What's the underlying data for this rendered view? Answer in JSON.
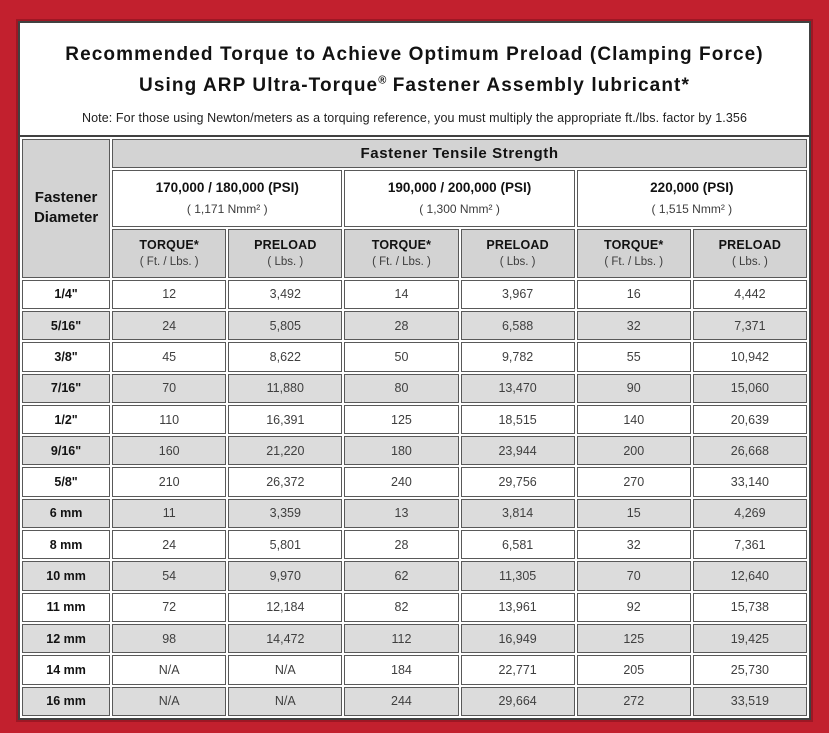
{
  "title": {
    "line1": "Recommended Torque to Achieve Optimum Preload (Clamping Force)",
    "line2_pre": "Using ARP Ultra-Torque",
    "line2_reg": "®",
    "line2_post": " Fastener Assembly lubricant*",
    "note": "Note: For those using Newton/meters as a torquing reference, you must multiply the appropriate ft./lbs. factor by 1.356"
  },
  "table": {
    "tensile_header": "Fastener Tensile Strength",
    "diameter_header": {
      "line1": "Fastener",
      "line2": "Diameter"
    },
    "groups": [
      {
        "psi": "170,000 / 180,000 (PSI)",
        "nmm": "( 1,171 Nmm² )"
      },
      {
        "psi": "190,000 / 200,000 (PSI)",
        "nmm": "( 1,300 Nmm² )"
      },
      {
        "psi": "220,000 (PSI)",
        "nmm": "( 1,515 Nmm² )"
      }
    ],
    "subheaders": {
      "torque": "TORQUE*",
      "torque_unit": "( Ft. / Lbs. )",
      "preload": "PRELOAD",
      "preload_unit": "( Lbs. )"
    },
    "rows": [
      {
        "diameter": "1/4\"",
        "values": [
          "12",
          "3,492",
          "14",
          "3,967",
          "16",
          "4,442"
        ]
      },
      {
        "diameter": "5/16\"",
        "values": [
          "24",
          "5,805",
          "28",
          "6,588",
          "32",
          "7,371"
        ]
      },
      {
        "diameter": "3/8\"",
        "values": [
          "45",
          "8,622",
          "50",
          "9,782",
          "55",
          "10,942"
        ]
      },
      {
        "diameter": "7/16\"",
        "values": [
          "70",
          "11,880",
          "80",
          "13,470",
          "90",
          "15,060"
        ]
      },
      {
        "diameter": "1/2\"",
        "values": [
          "110",
          "16,391",
          "125",
          "18,515",
          "140",
          "20,639"
        ]
      },
      {
        "diameter": "9/16\"",
        "values": [
          "160",
          "21,220",
          "180",
          "23,944",
          "200",
          "26,668"
        ]
      },
      {
        "diameter": "5/8\"",
        "values": [
          "210",
          "26,372",
          "240",
          "29,756",
          "270",
          "33,140"
        ]
      },
      {
        "diameter": "6 mm",
        "values": [
          "11",
          "3,359",
          "13",
          "3,814",
          "15",
          "4,269"
        ]
      },
      {
        "diameter": "8 mm",
        "values": [
          "24",
          "5,801",
          "28",
          "6,581",
          "32",
          "7,361"
        ]
      },
      {
        "diameter": "10 mm",
        "values": [
          "54",
          "9,970",
          "62",
          "11,305",
          "70",
          "12,640"
        ]
      },
      {
        "diameter": "11 mm",
        "values": [
          "72",
          "12,184",
          "82",
          "13,961",
          "92",
          "15,738"
        ]
      },
      {
        "diameter": "12 mm",
        "values": [
          "98",
          "14,472",
          "112",
          "16,949",
          "125",
          "19,425"
        ]
      },
      {
        "diameter": "14 mm",
        "values": [
          "N/A",
          "N/A",
          "184",
          "22,771",
          "205",
          "25,730"
        ]
      },
      {
        "diameter": "16 mm",
        "values": [
          "N/A",
          "N/A",
          "244",
          "29,664",
          "272",
          "33,519"
        ]
      }
    ]
  },
  "colors": {
    "frame_red": "#c2202e",
    "page_border": "#414141",
    "header_gray": "#d3d3d3",
    "alt_row_gray": "#dcdcdc",
    "cell_border": "#595959"
  }
}
